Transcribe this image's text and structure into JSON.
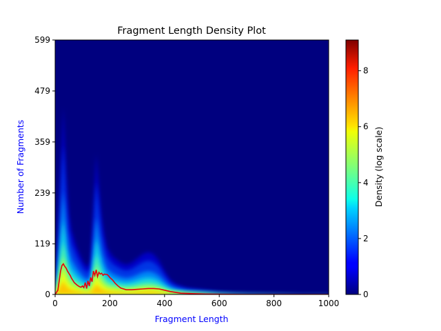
{
  "chart_data": {
    "type": "heatmap",
    "title": "Fragment Length Density Plot",
    "xlabel": "Fragment Length",
    "ylabel": "Number of Fragments",
    "xlim": [
      0,
      1000
    ],
    "ylim": [
      0,
      599
    ],
    "x_ticks": [
      "0",
      "200",
      "400",
      "600",
      "800",
      "1000"
    ],
    "y_ticks": [
      "0",
      "119",
      "239",
      "359",
      "479",
      "599"
    ],
    "colorbar": {
      "label": "Density (log scale)",
      "range": [
        0,
        9.1
      ],
      "ticks": [
        "0",
        "2",
        "4",
        "6",
        "8"
      ],
      "colormap": "jet"
    },
    "density_profile": {
      "x": [
        0,
        10,
        20,
        30,
        40,
        50,
        60,
        70,
        80,
        90,
        100,
        110,
        120,
        130,
        140,
        150,
        160,
        170,
        180,
        190,
        200,
        210,
        220,
        240,
        260,
        280,
        300,
        320,
        340,
        360,
        380,
        400,
        420,
        440,
        460,
        480,
        500,
        550,
        600,
        650,
        700,
        800,
        900,
        1000
      ],
      "spread_top": [
        5,
        120,
        300,
        440,
        280,
        190,
        150,
        130,
        110,
        95,
        80,
        70,
        65,
        80,
        200,
        330,
        250,
        180,
        140,
        110,
        100,
        90,
        85,
        75,
        70,
        75,
        85,
        95,
        100,
        95,
        80,
        55,
        35,
        25,
        20,
        16,
        14,
        10,
        6,
        4,
        3,
        2,
        1,
        1
      ]
    },
    "series": [
      {
        "x": [
          0,
          10,
          20,
          25,
          30,
          35,
          40,
          45,
          50,
          55,
          60,
          65,
          70,
          75,
          80,
          85,
          90,
          95,
          100,
          105,
          110,
          115,
          120,
          125,
          130,
          135,
          140,
          145,
          150,
          155,
          160,
          165,
          170,
          175,
          180,
          185,
          190,
          195,
          200,
          210,
          220,
          230,
          240,
          260,
          280,
          300,
          320,
          340,
          360,
          380,
          400,
          420,
          440,
          460,
          500,
          550,
          600,
          700,
          800,
          900,
          1000
        ],
        "y": [
          0,
          10,
          55,
          68,
          72,
          66,
          62,
          55,
          50,
          45,
          38,
          33,
          28,
          25,
          22,
          20,
          18,
          17,
          20,
          16,
          28,
          14,
          32,
          20,
          40,
          30,
          55,
          45,
          58,
          42,
          52,
          48,
          50,
          45,
          48,
          47,
          47,
          44,
          40,
          34,
          26,
          20,
          15,
          11,
          11,
          12,
          13,
          14,
          14,
          13,
          10,
          7,
          5,
          3,
          2,
          1,
          0.5,
          0,
          0,
          0,
          0
        ]
      }
    ]
  }
}
